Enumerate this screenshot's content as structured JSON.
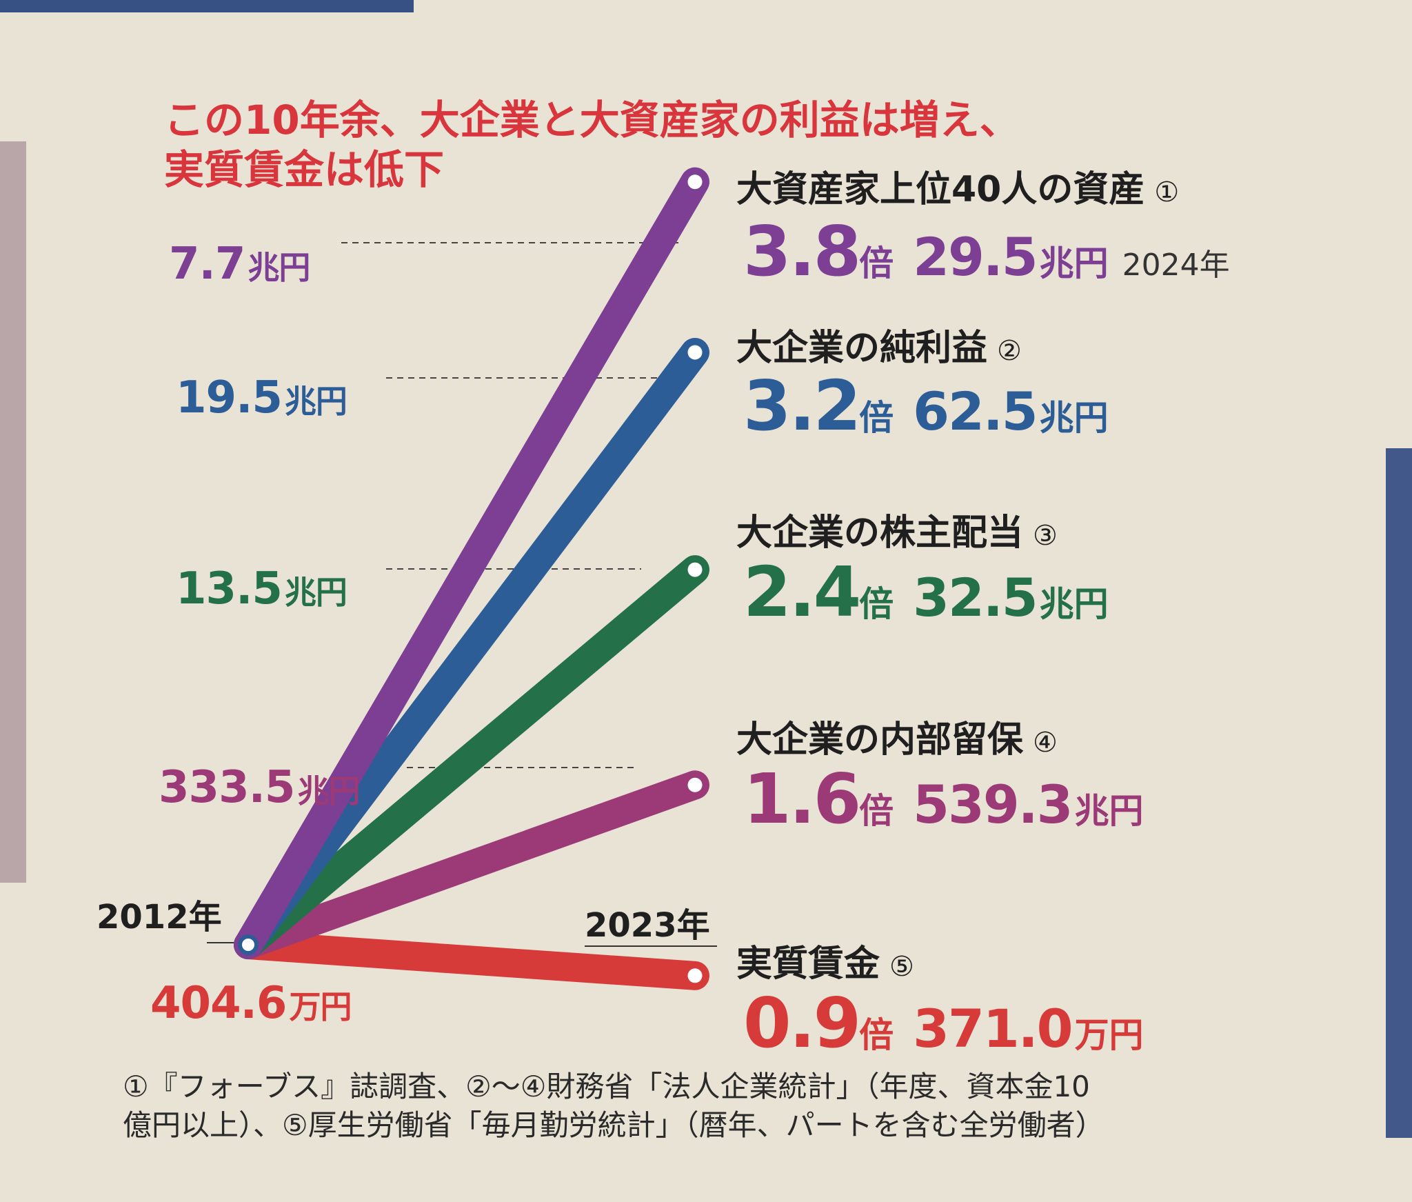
{
  "title_lines": [
    "この10年余、大企業と大資産家の利益は増え、",
    "実質賃金は低下"
  ],
  "years": {
    "start": "2012年",
    "end": "2023年"
  },
  "footnote": [
    "①『フォーブス』誌調査、②〜④財務省「法人企業統計」（年度、資本金10",
    "億円以上）、⑤厚生労働省「毎月勤労統計」（暦年、パートを含む全労働者）"
  ],
  "series": [
    {
      "key": "assets",
      "name": "大資産家上位40人の資産",
      "marker": "①",
      "color": "#7c3f93",
      "start_value": "7.7",
      "start_unit": "兆円",
      "end_value": "29.5",
      "end_unit": "兆円",
      "ratio": "3.8",
      "ratio_unit": "倍",
      "note": "2024年"
    },
    {
      "key": "profit",
      "name": "大企業の純利益",
      "marker": "②",
      "color": "#2c5d97",
      "start_value": "19.5",
      "start_unit": "兆円",
      "end_value": "62.5",
      "end_unit": "兆円",
      "ratio": "3.2",
      "ratio_unit": "倍"
    },
    {
      "key": "dividend",
      "name": "大企業の株主配当",
      "marker": "③",
      "color": "#237049",
      "start_value": "13.5",
      "start_unit": "兆円",
      "end_value": "32.5",
      "end_unit": "兆円",
      "ratio": "2.4",
      "ratio_unit": "倍"
    },
    {
      "key": "reserves",
      "name": "大企業の内部留保",
      "marker": "④",
      "color": "#9b3a76",
      "start_value": "333.5",
      "start_unit": "兆円",
      "end_value": "539.3",
      "end_unit": "兆円",
      "ratio": "1.6",
      "ratio_unit": "倍"
    },
    {
      "key": "wages",
      "name": "実質賃金",
      "marker": "⑤",
      "color": "#d63b3a",
      "start_value": "404.6",
      "start_unit": "万円",
      "end_value": "371.0",
      "end_unit": "万円",
      "ratio": "0.9",
      "ratio_unit": "倍"
    }
  ],
  "chart_data": {
    "type": "line",
    "x": [
      "2012",
      "2023"
    ],
    "series": [
      {
        "name": "大資産家上位40人の資産",
        "values": [
          7.7,
          29.5
        ],
        "unit": "兆円",
        "ratio": 3.8
      },
      {
        "name": "大企業の純利益",
        "values": [
          19.5,
          62.5
        ],
        "unit": "兆円",
        "ratio": 3.2
      },
      {
        "name": "大企業の株主配当",
        "values": [
          13.5,
          32.5
        ],
        "unit": "兆円",
        "ratio": 2.4
      },
      {
        "name": "大企業の内部留保",
        "values": [
          333.5,
          539.3
        ],
        "unit": "兆円",
        "ratio": 1.6
      },
      {
        "name": "実質賃金",
        "values": [
          404.6,
          371.0
        ],
        "unit": "万円",
        "ratio": 0.9
      }
    ],
    "scale": "ratio (indexed to 2012 = 1)"
  }
}
